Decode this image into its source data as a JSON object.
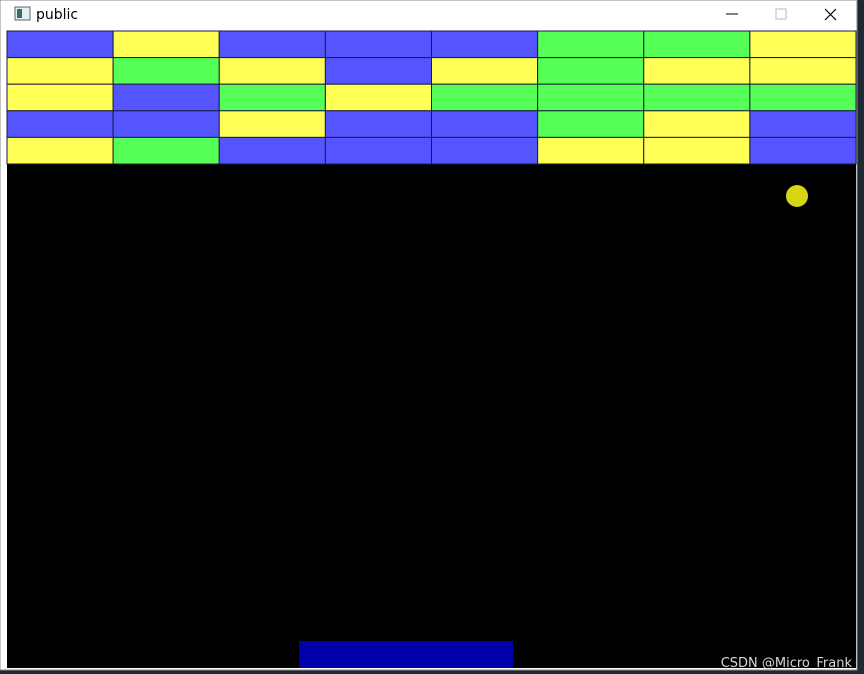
{
  "window": {
    "title": "public"
  },
  "game": {
    "brick_rows": [
      [
        "#5555ff",
        "#ffff55",
        "#5555ff",
        "#5555ff",
        "#5555ff",
        "#55ff55",
        "#55ff55",
        "#ffff55"
      ],
      [
        "#ffff55",
        "#55ff55",
        "#ffff55",
        "#5555ff",
        "#ffff55",
        "#55ff55",
        "#ffff55",
        "#ffff55"
      ],
      [
        "#ffff55",
        "#5555ff",
        "#55ff55",
        "#ffff55",
        "#55ff55",
        "#55ff55",
        "#55ff55",
        "#55ff55"
      ],
      [
        "#5555ff",
        "#5555ff",
        "#ffff55",
        "#5555ff",
        "#5555ff",
        "#55ff55",
        "#ffff55",
        "#5555ff"
      ],
      [
        "#ffff55",
        "#55ff55",
        "#5555ff",
        "#5555ff",
        "#5555ff",
        "#ffff55",
        "#ffff55",
        "#5555ff"
      ]
    ],
    "ball_color": "#d6d614",
    "paddle_color": "#0000aa"
  },
  "watermark": "CSDN @Micro_Frank"
}
